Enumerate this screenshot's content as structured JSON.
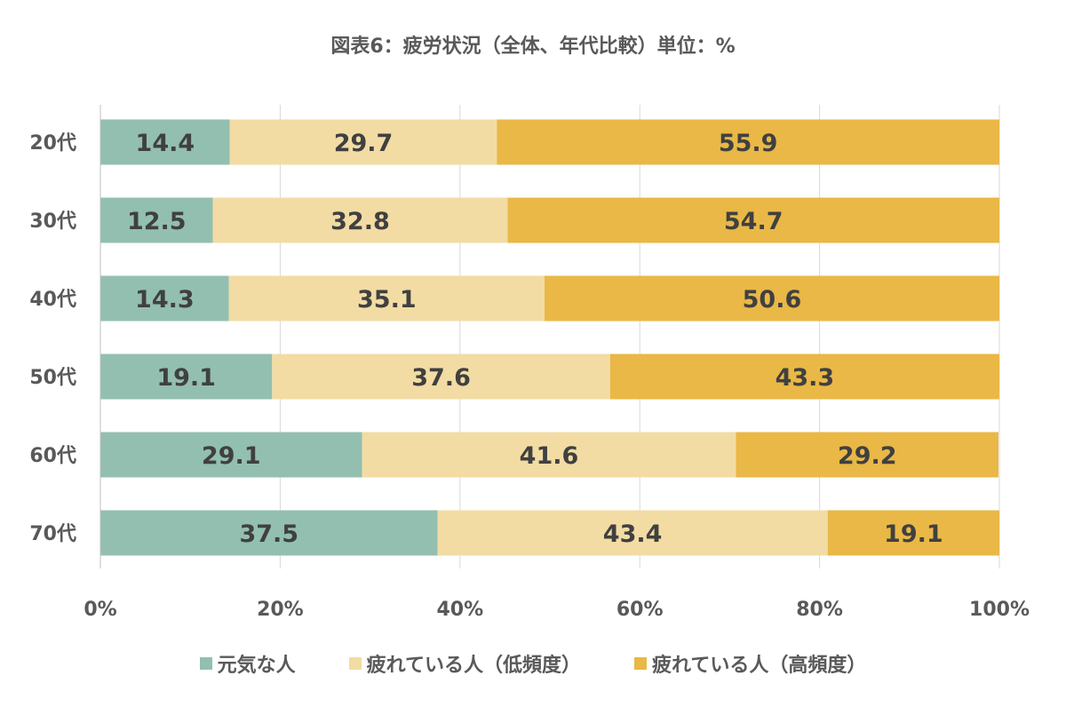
{
  "chart_data": {
    "type": "bar",
    "orientation": "horizontal",
    "stacked": "percent",
    "title": "図表6：疲労状況（全体、年代比較）単位：%",
    "categories": [
      "20代",
      "30代",
      "40代",
      "50代",
      "60代",
      "70代"
    ],
    "series": [
      {
        "name": "元気な人",
        "color": "#93BFB0",
        "values": [
          14.4,
          12.5,
          14.3,
          19.1,
          29.1,
          37.5
        ]
      },
      {
        "name": "疲れている人（低頻度）",
        "color": "#F2DCA4",
        "values": [
          29.7,
          32.8,
          35.1,
          37.6,
          41.6,
          43.4
        ]
      },
      {
        "name": "疲れている人（高頻度）",
        "color": "#E9B846",
        "values": [
          55.9,
          54.7,
          50.6,
          43.3,
          29.2,
          19.1
        ]
      }
    ],
    "x_ticks": [
      "0%",
      "20%",
      "40%",
      "60%",
      "80%",
      "100%"
    ],
    "xlim": [
      0,
      100
    ],
    "grid": true,
    "data_labels": true,
    "legend_position": "bottom"
  }
}
